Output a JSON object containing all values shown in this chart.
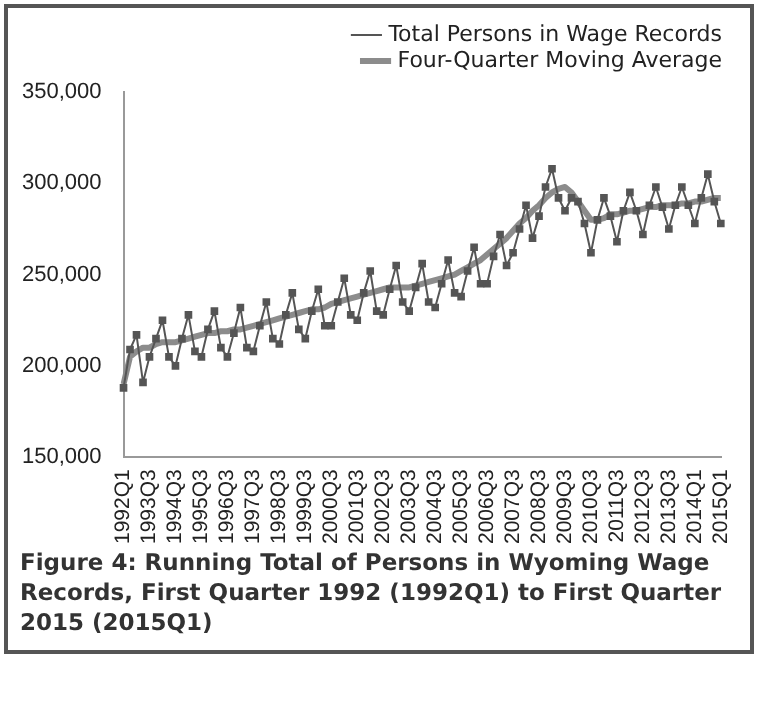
{
  "chart_data": {
    "type": "line",
    "categories": [
      "1992Q1",
      null,
      null,
      null,
      "1993Q3",
      null,
      null,
      null,
      "1994Q3",
      null,
      null,
      null,
      "1995Q3",
      null,
      null,
      null,
      "1996Q3",
      null,
      null,
      null,
      "1997Q3",
      null,
      null,
      null,
      "1998Q3",
      null,
      null,
      null,
      "1999Q3",
      null,
      null,
      null,
      "2000Q3",
      null,
      null,
      null,
      "2001Q3",
      null,
      null,
      null,
      "2002Q3",
      null,
      null,
      null,
      "2003Q3",
      null,
      null,
      null,
      "2004Q3",
      null,
      null,
      null,
      "2005Q3",
      null,
      null,
      null,
      "2006Q3",
      null,
      null,
      null,
      "2007Q3",
      null,
      null,
      null,
      "2008Q3",
      null,
      null,
      null,
      "2009Q3",
      null,
      null,
      null,
      "2010Q3",
      null,
      null,
      null,
      "2011Q3",
      null,
      null,
      null,
      "2012Q3",
      null,
      null,
      null,
      "2013Q3",
      null,
      null,
      null,
      "2014Q1",
      null,
      null,
      null,
      "2015Q1"
    ],
    "series": [
      {
        "name": "Total Persons in Wage Records",
        "color": "#555555",
        "marker": "square",
        "line_style": "solid",
        "values": [
          188000,
          209000,
          217000,
          191000,
          205000,
          215000,
          225000,
          205000,
          200000,
          215000,
          228000,
          208000,
          205000,
          220000,
          230000,
          210000,
          205000,
          218000,
          232000,
          210000,
          208000,
          222000,
          235000,
          215000,
          212000,
          228000,
          240000,
          220000,
          215000,
          230000,
          242000,
          222000,
          222000,
          235000,
          248000,
          228000,
          225000,
          240000,
          252000,
          230000,
          228000,
          242000,
          255000,
          235000,
          230000,
          243000,
          256000,
          235000,
          232000,
          245000,
          258000,
          240000,
          238000,
          252000,
          265000,
          245000,
          245000,
          260000,
          272000,
          255000,
          262000,
          275000,
          288000,
          270000,
          282000,
          298000,
          308000,
          292000,
          285000,
          292000,
          290000,
          278000,
          262000,
          280000,
          292000,
          282000,
          268000,
          285000,
          295000,
          285000,
          272000,
          288000,
          298000,
          287000,
          275000,
          288000,
          298000,
          288000,
          278000,
          292000,
          305000,
          290000,
          278000
        ]
      },
      {
        "name": "Four-Quarter Moving Average",
        "color": "#8c8c8c",
        "marker": "none",
        "line_style": "solid",
        "values": [
          190000,
          205000,
          208000,
          210000,
          210000,
          212000,
          213000,
          213000,
          213000,
          214000,
          215000,
          216000,
          217000,
          218000,
          218000,
          219000,
          219000,
          220000,
          220000,
          221000,
          222000,
          223000,
          224000,
          225000,
          226000,
          227000,
          228000,
          229000,
          230000,
          231000,
          231000,
          232000,
          234000,
          235000,
          236000,
          237000,
          238000,
          239000,
          240000,
          241000,
          242000,
          243000,
          243000,
          243000,
          243000,
          244000,
          245000,
          246000,
          247000,
          248000,
          249000,
          250000,
          252000,
          254000,
          256000,
          258000,
          261000,
          264000,
          267000,
          270000,
          274000,
          278000,
          281000,
          285000,
          288000,
          292000,
          295000,
          297000,
          298000,
          295000,
          290000,
          285000,
          280000,
          280000,
          281000,
          283000,
          283000,
          284000,
          285000,
          285000,
          286000,
          287000,
          287000,
          288000,
          288000,
          288000,
          289000,
          289000,
          290000,
          290000,
          291000,
          292000,
          292000
        ]
      }
    ],
    "ylim": [
      150000,
      350000
    ],
    "yticks": [
      {
        "value": 150000,
        "label": "150,000"
      },
      {
        "value": 200000,
        "label": "200,000"
      },
      {
        "value": 250000,
        "label": "250,000"
      },
      {
        "value": 300000,
        "label": "300,000"
      },
      {
        "value": 350000,
        "label": "350,000"
      }
    ],
    "grid": false,
    "legend": "top",
    "annotations": [
      "Figure 4: Running Total of Persons in Wyoming Wage Records, First Quarter 1992 (1992Q1) to First Quarter 2015 (2015Q1)"
    ]
  }
}
